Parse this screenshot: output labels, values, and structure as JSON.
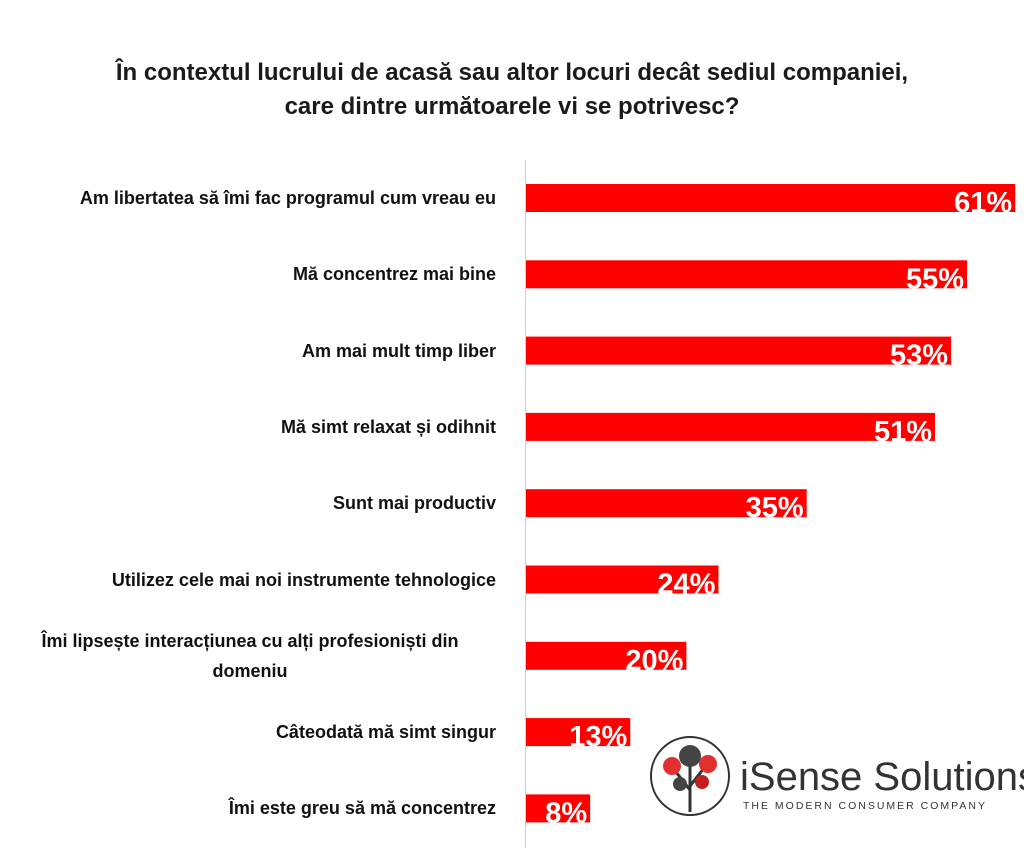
{
  "chart_data": {
    "type": "barh",
    "title": "În contextul lucrului de acasă sau altor locuri decât sediul companiei, care dintre următoarele vi se potrivesc?",
    "categories": [
      "Am libertatea să îmi fac programul cum vreau eu",
      "Mă concentrez mai bine",
      "Am mai mult timp liber",
      "Mă simt relaxat și odihnit",
      "Sunt mai productiv",
      "Utilizez cele mai noi instrumente tehnologice",
      "Îmi lipsește interacțiunea cu alți profesioniști din domeniu",
      "Câteodată mă simt singur",
      "Îmi este greu să mă concentrez"
    ],
    "values": [
      61,
      55,
      53,
      51,
      35,
      24,
      20,
      13,
      8
    ],
    "value_labels": [
      "61%",
      "55%",
      "53%",
      "51%",
      "35%",
      "24%",
      "20%",
      "13%",
      "8%"
    ],
    "color": "#ff0000"
  },
  "logo": {
    "name": "iSense Solutions",
    "tagline": "THE MODERN CONSUMER COMPANY"
  }
}
